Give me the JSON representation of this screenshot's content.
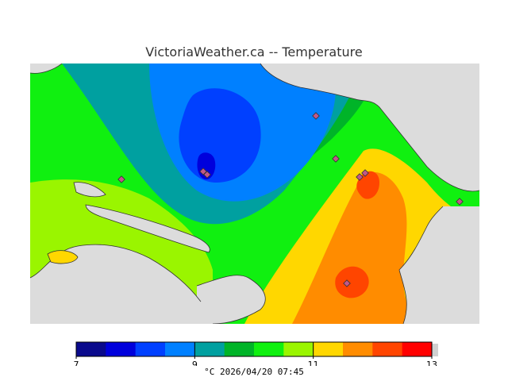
{
  "title": "VictoriaWeather.ca -- Temperature",
  "legend": {
    "colors": [
      "#0a0a8c",
      "#0000dc",
      "#0040ff",
      "#0080ff",
      "#00a0a0",
      "#00b428",
      "#10f010",
      "#9af500",
      "#ffd700",
      "#ff8c00",
      "#ff4500",
      "#ff0000"
    ],
    "tick_labels": [
      "7",
      "9",
      "11",
      "13"
    ],
    "tick_values": [
      7,
      9,
      11,
      13
    ],
    "min": 7,
    "max": 13
  },
  "footer": {
    "unit": "°C",
    "timestamp": "2026/04/20 07:45"
  },
  "map_colors": {
    "land_background": "#dcdcdc",
    "station_fill": "#c0588a"
  }
}
